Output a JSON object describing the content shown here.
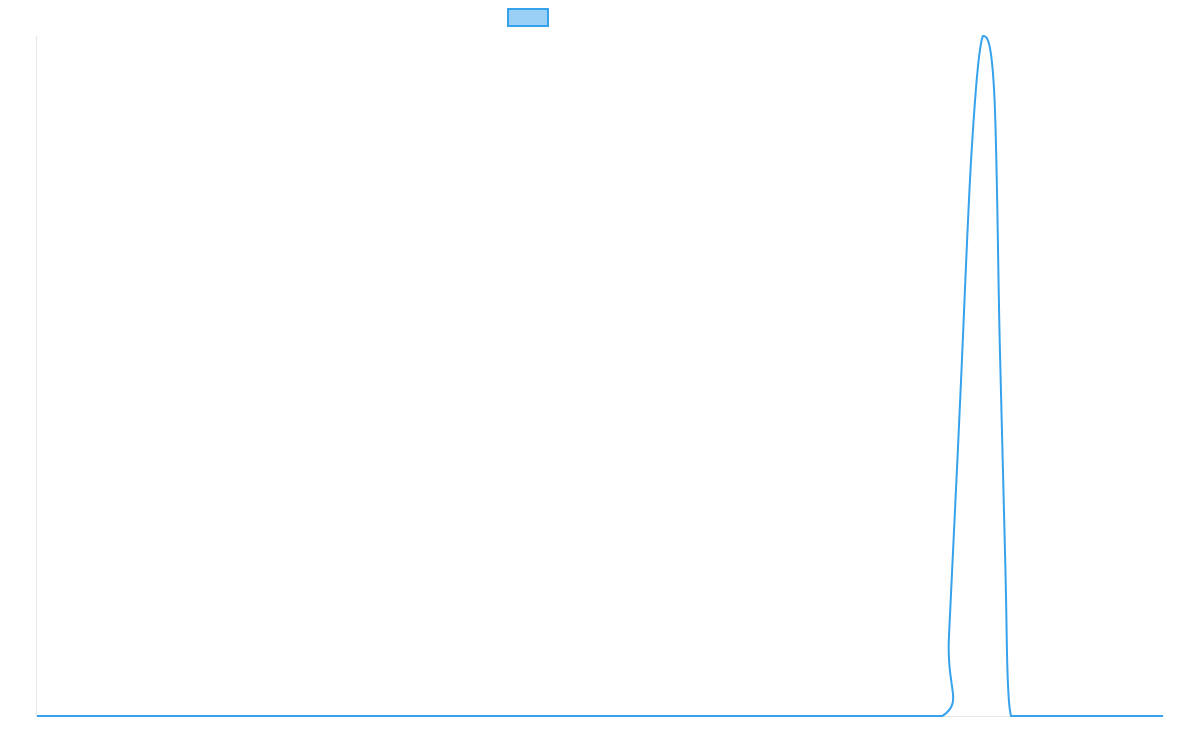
{
  "chart_data": {
    "type": "line",
    "title": "",
    "xlabel": "",
    "ylabel": "",
    "legend": {
      "placement": "top-center",
      "entries": [
        ""
      ]
    },
    "grid": false,
    "xlim": [
      0,
      100
    ],
    "ylim": [
      0,
      1
    ],
    "series": [
      {
        "color": "#36a2eb",
        "fill_color": "#9ad0f5",
        "x": [
          0,
          10,
          20,
          30,
          40,
          50,
          60,
          70,
          80.4,
          81,
          82,
          83,
          84,
          85,
          85.5,
          86,
          86.2,
          86.5,
          87,
          90,
          100
        ],
        "values": [
          0,
          0,
          0,
          0,
          0,
          0,
          0,
          0,
          0,
          0.12,
          0.47,
          0.83,
          1.0,
          0.92,
          0.55,
          0.22,
          0.06,
          0,
          0,
          0,
          0
        ]
      }
    ]
  }
}
